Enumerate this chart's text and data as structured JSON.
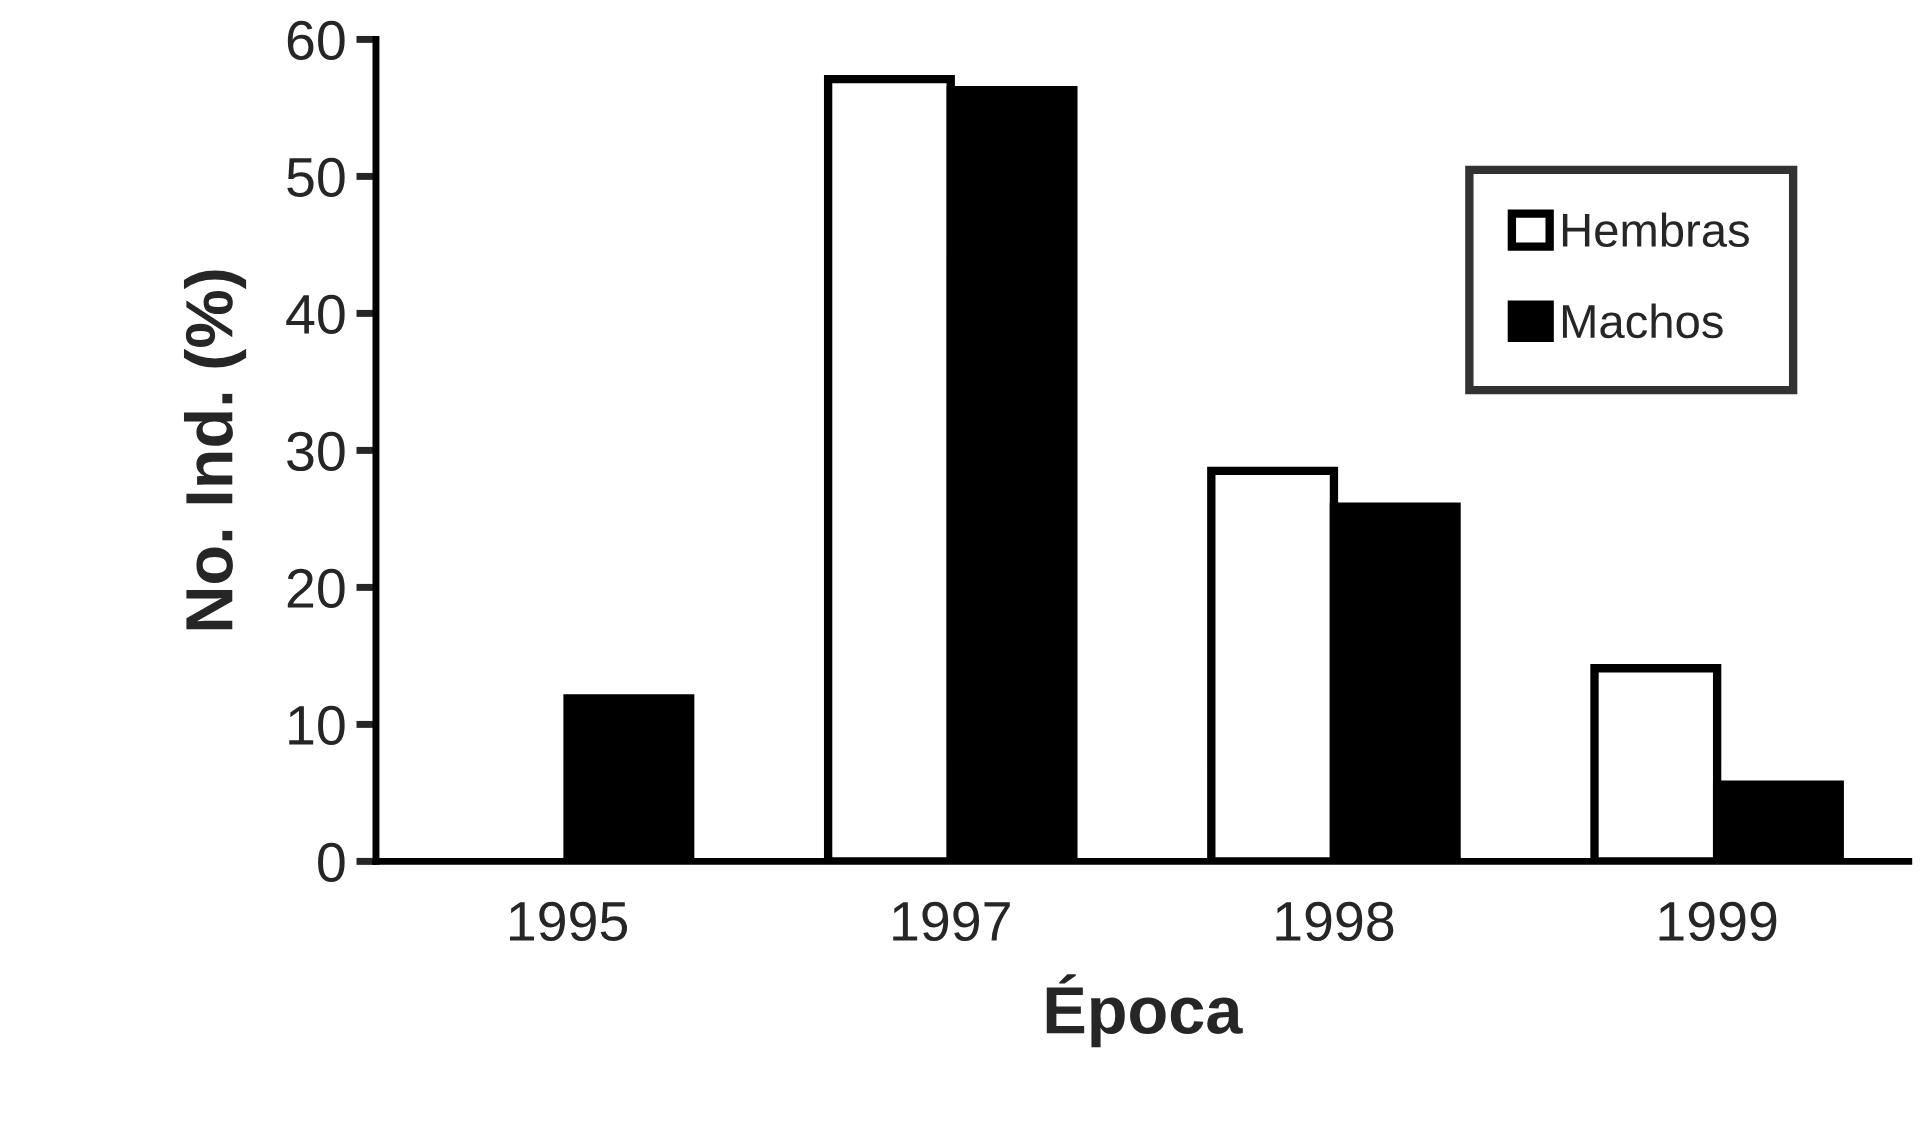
{
  "chart_data": {
    "type": "bar",
    "xlabel": "Época",
    "ylabel": "No. Ind. (%)",
    "categories": [
      "1995",
      "1997",
      "1998",
      "1999"
    ],
    "series": [
      {
        "name": "Hembras",
        "color": "#ffffff",
        "values": [
          null,
          57.1,
          28.5,
          14.1
        ]
      },
      {
        "name": "Machos",
        "color": "#000000",
        "values": [
          11.9,
          56.3,
          25.9,
          5.6
        ]
      }
    ],
    "ylim": [
      0,
      60
    ],
    "yticks": [
      0,
      10,
      20,
      30,
      40,
      50,
      60
    ],
    "grid": false,
    "legend": "top right"
  }
}
